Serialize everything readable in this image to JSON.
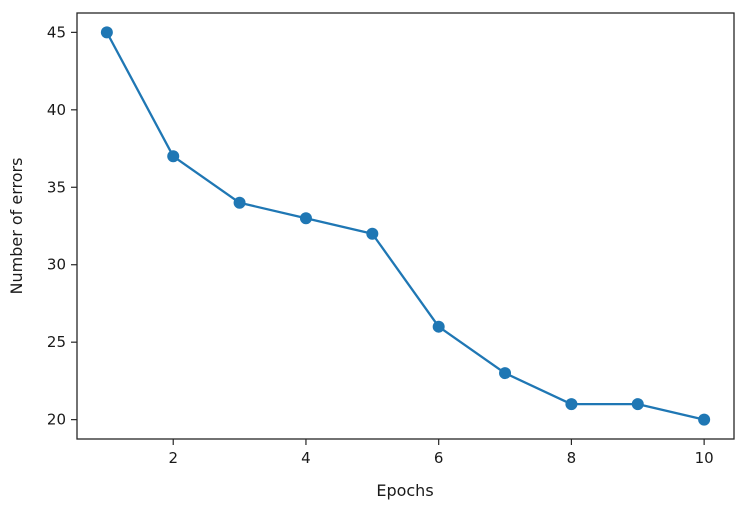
{
  "chart_data": {
    "type": "line",
    "title": "",
    "xlabel": "Epochs",
    "ylabel": "Number of errors",
    "x": [
      1,
      2,
      3,
      4,
      5,
      6,
      7,
      8,
      9,
      10
    ],
    "series": [
      {
        "values": [
          45,
          37,
          34,
          33,
          32,
          26,
          23,
          21,
          21,
          20
        ],
        "color": "#1f77b4",
        "marker": "circle"
      }
    ],
    "xlim": [
      0.55,
      10.45
    ],
    "ylim": [
      18.75,
      46.25
    ],
    "xticks": [
      2,
      4,
      6,
      8,
      10
    ],
    "yticks": [
      20,
      25,
      30,
      35,
      40,
      45
    ],
    "grid": false,
    "legend": "none"
  }
}
